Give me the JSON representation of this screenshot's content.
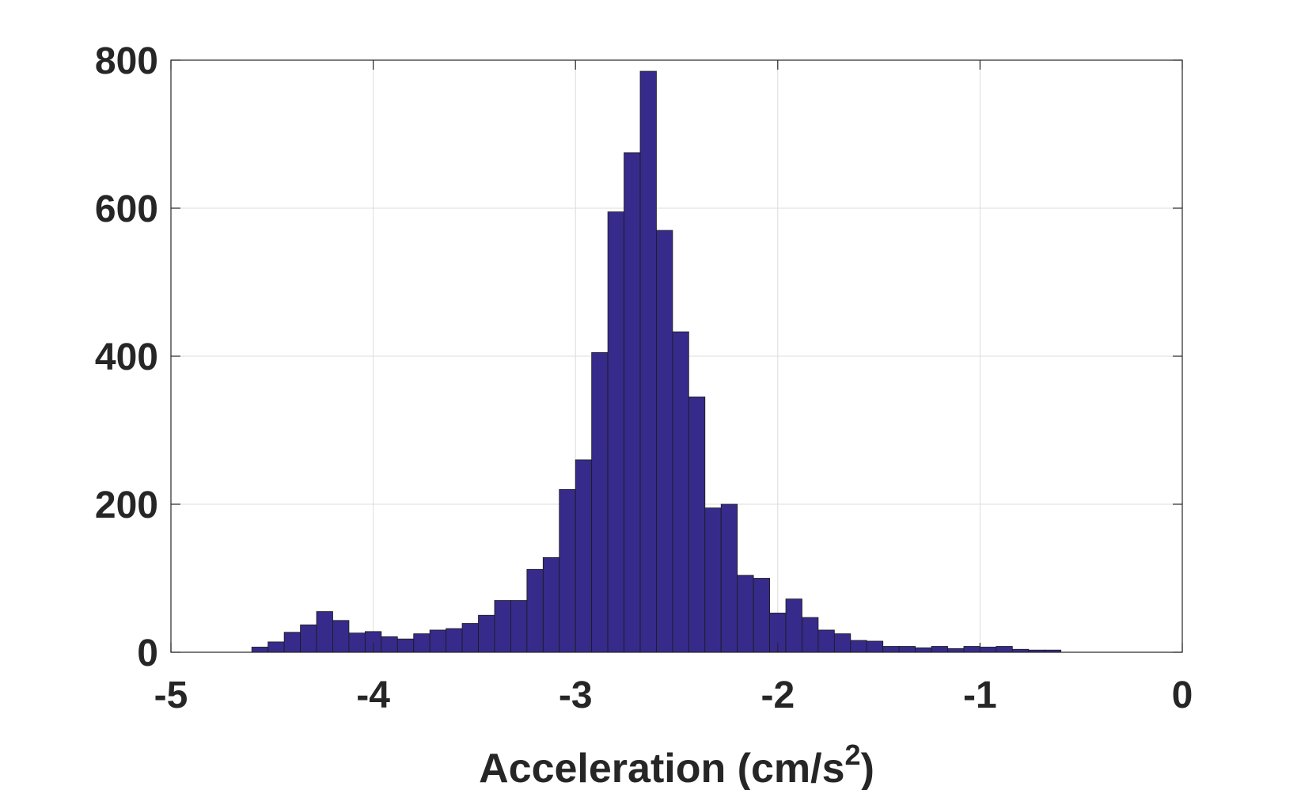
{
  "chart_data": {
    "type": "bar",
    "subtype": "histogram",
    "title": "",
    "xlabel_main": "Acceleration (cm/s",
    "xlabel_sup": "2",
    "xlabel_close": ")",
    "ylabel": "",
    "xlim": [
      -5,
      0
    ],
    "ylim": [
      0,
      800
    ],
    "xticks": [
      -5,
      -4,
      -3,
      -2,
      -1,
      0
    ],
    "xtick_labels": [
      "-5",
      "-4",
      "-3",
      "-2",
      "-1",
      "0"
    ],
    "yticks": [
      0,
      200,
      400,
      600,
      800
    ],
    "ytick_labels": [
      "0",
      "200",
      "400",
      "600",
      "800"
    ],
    "grid": true,
    "bar_color": "#362B8A",
    "bin_start": -4.6,
    "bin_width": 0.08,
    "values": [
      7,
      14,
      27,
      37,
      55,
      43,
      26,
      28,
      21,
      18,
      25,
      30,
      32,
      39,
      50,
      70,
      70,
      112,
      128,
      220,
      260,
      405,
      595,
      675,
      785,
      570,
      433,
      345,
      195,
      200,
      104,
      100,
      53,
      72,
      47,
      30,
      25,
      16,
      15,
      8,
      8,
      6,
      8,
      5,
      8,
      7,
      8,
      4,
      3,
      3
    ]
  }
}
